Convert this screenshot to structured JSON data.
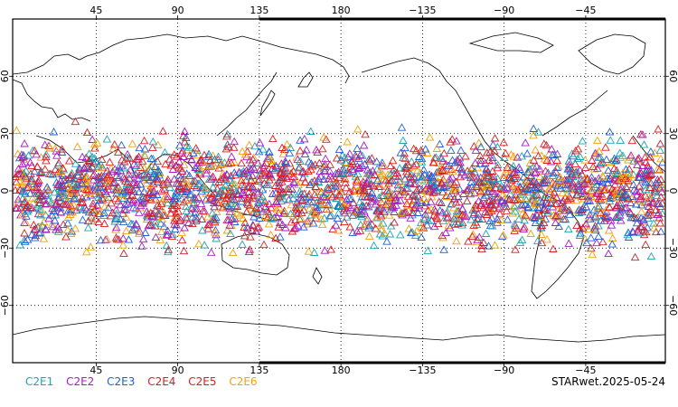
{
  "map": {
    "top_lon_labels": [
      "45",
      "90",
      "135",
      "180",
      "−135",
      "−90",
      "−45"
    ],
    "bottom_lon_labels": [
      "45",
      "90",
      "135",
      "180",
      "−135",
      "−90",
      "−45"
    ],
    "lat_labels": [
      "60",
      "30",
      "0",
      "−30",
      "−60"
    ],
    "lon_values": [
      45,
      90,
      135,
      180,
      -135,
      -90,
      -45
    ],
    "lat_values": [
      60,
      30,
      0,
      -30,
      -60
    ],
    "marker_shape": "triangle-outline",
    "observation_lat_range": [
      -40,
      45
    ],
    "colors": {
      "coast": "#000000",
      "grid": "#000000"
    }
  },
  "legend": [
    {
      "label": "C2E1",
      "color": "#1fa5b3"
    },
    {
      "label": "C2E2",
      "color": "#a21dc4"
    },
    {
      "label": "C2E3",
      "color": "#1f5fd6"
    },
    {
      "label": "C2E4",
      "color": "#cf1f2f"
    },
    {
      "label": "C2E5",
      "color": "#e01b1b"
    },
    {
      "label": "C2E6",
      "color": "#f0a20d"
    }
  ],
  "date_label": "STARwet.2025-05-24"
}
